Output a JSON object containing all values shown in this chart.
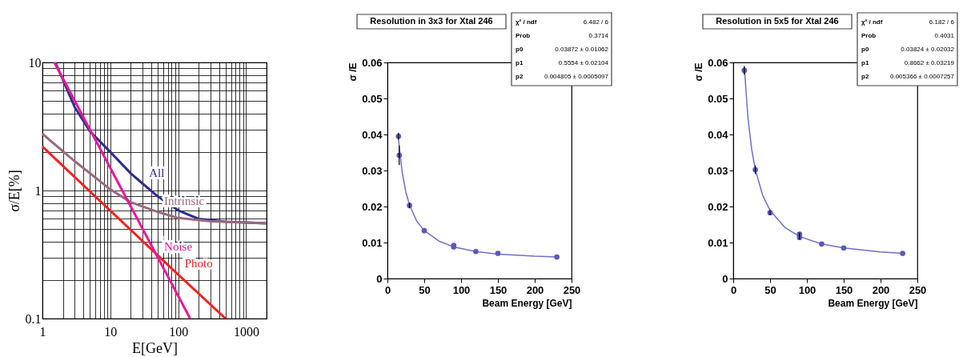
{
  "chart_data": [
    {
      "type": "line",
      "xlabel": "E[GeV]",
      "ylabel": "σ/E[%]",
      "log": "xy",
      "xlim": [
        1,
        2000
      ],
      "ylim": [
        0.1,
        10
      ],
      "grid": true,
      "xticks": [
        1,
        {
          "value": 2,
          "label": null
        },
        {
          "value": 3,
          "label": null
        },
        {
          "value": 4,
          "label": null
        },
        {
          "value": 5,
          "label": null
        },
        {
          "value": 6,
          "label": null
        },
        {
          "value": 7,
          "label": null
        },
        {
          "value": 8,
          "label": null
        },
        {
          "value": 9,
          "label": null
        },
        10,
        {
          "value": 20,
          "label": null
        },
        {
          "value": 30,
          "label": null
        },
        {
          "value": 40,
          "label": null
        },
        {
          "value": 50,
          "label": null
        },
        {
          "value": 60,
          "label": null
        },
        {
          "value": 70,
          "label": null
        },
        {
          "value": 80,
          "label": null
        },
        {
          "value": 90,
          "label": null
        },
        100,
        {
          "value": 200,
          "label": null
        },
        {
          "value": 300,
          "label": null
        },
        {
          "value": 400,
          "label": null
        },
        {
          "value": 500,
          "label": null
        },
        {
          "value": 600,
          "label": null
        },
        {
          "value": 700,
          "label": null
        },
        {
          "value": 800,
          "label": null
        },
        {
          "value": 900,
          "label": null
        },
        1000,
        {
          "value": 2000,
          "label": null
        }
      ],
      "yticks": [
        0.1,
        {
          "value": 0.2,
          "label": null
        },
        {
          "value": 0.3,
          "label": null
        },
        {
          "value": 0.4,
          "label": null
        },
        {
          "value": 0.5,
          "label": null
        },
        {
          "value": 0.6,
          "label": null
        },
        {
          "value": 0.7,
          "label": null
        },
        {
          "value": 0.8,
          "label": null
        },
        {
          "value": 0.9,
          "label": null
        },
        1,
        {
          "value": 2,
          "label": null
        },
        {
          "value": 3,
          "label": null
        },
        {
          "value": 4,
          "label": null
        },
        {
          "value": 5,
          "label": null
        },
        {
          "value": 6,
          "label": null
        },
        {
          "value": 7,
          "label": null
        },
        {
          "value": 8,
          "label": null
        },
        {
          "value": 9,
          "label": null
        },
        10
      ],
      "series": [
        {
          "name": "All",
          "color": "#2e2e8c",
          "x": [
            1.55,
            3,
            5,
            10,
            20,
            30,
            50,
            100,
            200,
            500,
            2000
          ],
          "values": [
            10,
            4.45,
            2.9,
            2.0,
            1.36,
            1.13,
            0.9,
            0.7,
            0.6,
            0.57,
            0.555
          ]
        },
        {
          "name": "Intrinsic",
          "color": "#9a6a80",
          "x": [
            1,
            3,
            10,
            20,
            50,
            100,
            300,
            2000
          ],
          "values": [
            2.77,
            1.69,
            1.02,
            0.81,
            0.68,
            0.61,
            0.575,
            0.555
          ]
        },
        {
          "name": "Photo",
          "color": "#ee2424",
          "x": [
            1,
            100,
            500
          ],
          "values": [
            2.2,
            0.22,
            0.1
          ]
        },
        {
          "name": "Noise",
          "color": "#e8179a",
          "x": [
            1.5,
            50,
            150
          ],
          "values": [
            10,
            0.3,
            0.1
          ]
        }
      ]
    },
    {
      "type": "scatter",
      "title": "Resolution in 3x3 for Xtal 246",
      "xlabel": "Beam Energy [GeV]",
      "ylabel": "σ /E",
      "xlim": [
        0,
        250
      ],
      "xticks": [
        0,
        50,
        100,
        150,
        200,
        250
      ],
      "ylim": [
        0,
        0.06
      ],
      "yticks": [
        0,
        0.01,
        0.02,
        0.03,
        0.04,
        0.05,
        0.06
      ],
      "marker": "circle",
      "annotations": [
        "χ² / ndf",
        "6.482 / 6",
        "Prob",
        "0.3714",
        "p0",
        "0.03872 ± 0.01062",
        "p1",
        "0.5554 ± 0.02104",
        "p2",
        "0.004805 ± 0.0005097"
      ],
      "series": [
        {
          "type": "line",
          "marker": "none",
          "color": "#7070c8",
          "x": [
            15,
            20,
            25,
            30,
            40,
            50,
            70,
            90,
            120,
            150,
            200,
            230
          ],
          "values": [
            0.0386,
            0.0295,
            0.024,
            0.0204,
            0.0159,
            0.0133,
            0.0104,
            0.0088,
            0.0075,
            0.0068,
            0.0062,
            0.006
          ]
        },
        {
          "type": "scatter",
          "color": "#5a5ab4",
          "x": [
            15,
            16,
            30,
            50,
            90,
            90,
            120,
            150,
            230
          ],
          "values": [
            0.0395,
            0.0342,
            0.0203,
            0.0133,
            0.0092,
            0.0088,
            0.0075,
            0.007,
            0.006
          ],
          "errors": [
            0.001,
            0.0027,
            0.0008,
            null,
            null,
            null,
            null,
            null,
            null
          ]
        }
      ]
    },
    {
      "type": "scatter",
      "title": "Resolution in 5x5 for Xtal 246",
      "xlabel": "Beam Energy [GeV]",
      "ylabel": "σ /E",
      "xlim": [
        0,
        250
      ],
      "xticks": [
        0,
        50,
        100,
        150,
        200,
        250
      ],
      "ylim": [
        0,
        0.06
      ],
      "yticks": [
        0,
        0.01,
        0.02,
        0.03,
        0.04,
        0.05,
        0.06
      ],
      "marker": "circle",
      "annotations": [
        "χ² / ndf",
        "6.182 / 6",
        "Prob",
        "0.4031",
        "p0",
        "0.03824 ± 0.02032",
        "p1",
        "0.8662 ± 0.03219",
        "p2",
        "0.005366 ± 0.0007257"
      ],
      "series": [
        {
          "type": "line",
          "marker": "none",
          "color": "#7070c8",
          "x": [
            15,
            20,
            25,
            30,
            40,
            50,
            70,
            90,
            120,
            150,
            200,
            230
          ],
          "values": [
            0.0588,
            0.0445,
            0.0359,
            0.0302,
            0.0231,
            0.0189,
            0.0142,
            0.0117,
            0.0096,
            0.0085,
            0.0074,
            0.007
          ]
        },
        {
          "type": "scatter",
          "color": "#5a5ab4",
          "x": [
            15,
            30,
            50,
            90,
            90,
            120,
            150,
            230
          ],
          "values": [
            0.0578,
            0.0302,
            0.0183,
            0.0123,
            0.0114,
            0.0096,
            0.0085,
            0.007
          ],
          "errors": [
            0.0012,
            0.0012,
            0.0007,
            0.0005,
            0.0005,
            null,
            null,
            null
          ]
        }
      ]
    }
  ]
}
